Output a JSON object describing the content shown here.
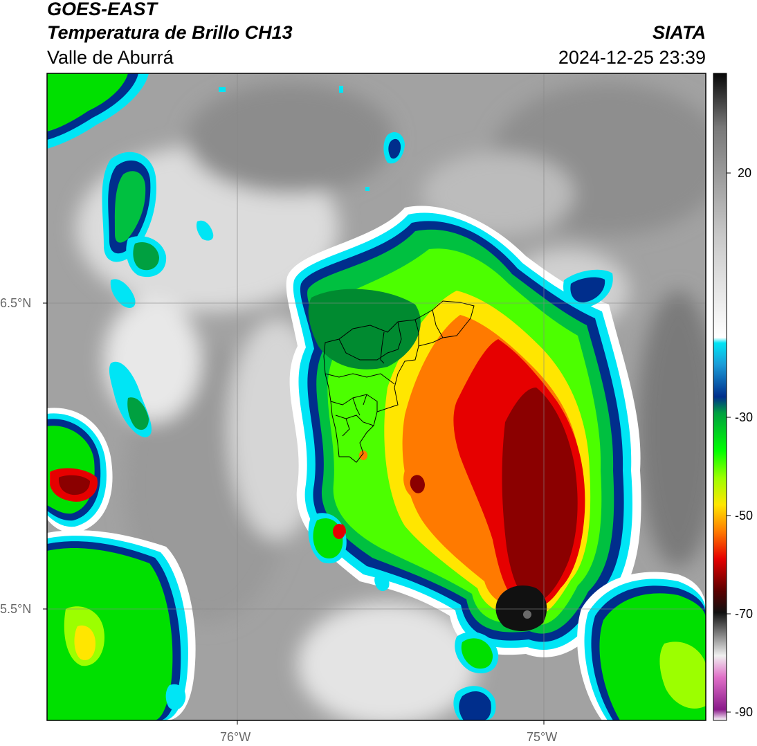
{
  "header": {
    "satellite": "GOES-EAST",
    "product": "Temperatura de Brillo CH13",
    "region": "Valle de Aburrá",
    "agency": "SIATA",
    "datetime": "2024-12-25 23:39"
  },
  "axes": {
    "lat_ticks": [
      "6.5°N",
      "5.5°N"
    ],
    "lon_ticks": [
      "76°W",
      "75°W"
    ]
  },
  "colorbar": {
    "tick_labels": [
      "20",
      "-30",
      "-50",
      "-70",
      "-90"
    ],
    "range": [
      -90,
      30
    ],
    "stops": [
      {
        "v": -90,
        "color": "#ffffff"
      },
      {
        "v": -88,
        "color": "#8a1a8a"
      },
      {
        "v": -82,
        "color": "#e070c8"
      },
      {
        "v": -78,
        "color": "#f0f0f0"
      },
      {
        "v": -70,
        "color": "#111111"
      },
      {
        "v": -66,
        "color": "#5a0000"
      },
      {
        "v": -60,
        "color": "#e60000"
      },
      {
        "v": -55,
        "color": "#ff7a00"
      },
      {
        "v": -50,
        "color": "#ffe600"
      },
      {
        "v": -45,
        "color": "#9cff00"
      },
      {
        "v": -40,
        "color": "#00ff00"
      },
      {
        "v": -33,
        "color": "#00a040"
      },
      {
        "v": -30,
        "color": "#002e8c"
      },
      {
        "v": -24,
        "color": "#1a9cd8"
      },
      {
        "v": -20,
        "color": "#00e5f5"
      },
      {
        "v": -19,
        "color": "#ffffff"
      },
      {
        "v": 0,
        "color": "#c8c8c8"
      },
      {
        "v": 20,
        "color": "#787878"
      },
      {
        "v": 30,
        "color": "#080808"
      }
    ]
  },
  "legend_colors": {
    "cold_core": "#8b0000",
    "cloud_edge": "#00e5f5",
    "background": "#a0a0a0"
  }
}
